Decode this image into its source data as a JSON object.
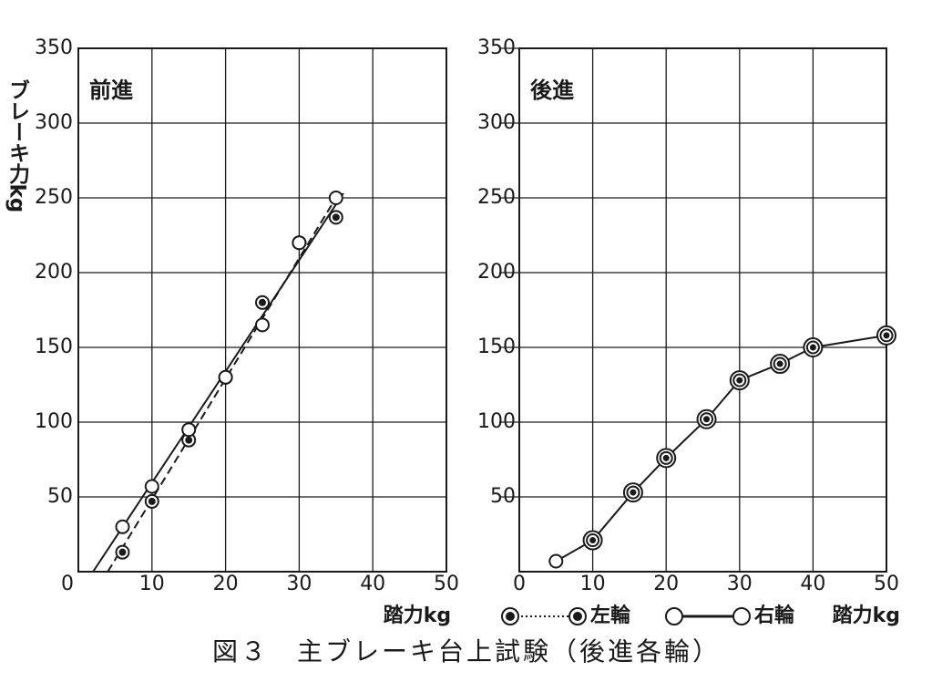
{
  "caption": "図３　主ブレーキ台上試験（後進各輪）",
  "chart_data": [
    {
      "type": "line",
      "panel_title": "前進",
      "ylabel": "ブレーキ力kg",
      "xlabel": "踏力kg",
      "xlim": [
        0,
        50
      ],
      "xticks": [
        0,
        10,
        20,
        30,
        40,
        50
      ],
      "ylim": [
        0,
        350
      ],
      "yticks": [
        50,
        100,
        150,
        200,
        250,
        300,
        350
      ],
      "grid": true,
      "series": [
        {
          "name": "左輪",
          "color": "#1a1a1a",
          "line": "dashed",
          "marker": "filled",
          "x": [
            6,
            10,
            15,
            20,
            25,
            30,
            35
          ],
          "values": [
            13,
            47,
            88,
            130,
            180,
            220,
            237
          ],
          "fit_x": [
            4,
            35
          ],
          "fit_y": [
            0,
            250
          ]
        },
        {
          "name": "右輪",
          "color": "#1a1a1a",
          "line": "solid",
          "marker": "open",
          "x": [
            6,
            10,
            15,
            20,
            25,
            30,
            35
          ],
          "values": [
            30,
            57,
            95,
            130,
            165,
            220,
            250
          ],
          "fit_x": [
            2,
            36
          ],
          "fit_y": [
            0,
            253
          ]
        }
      ]
    },
    {
      "type": "line",
      "panel_title": "後進",
      "xlabel": "踏力kg",
      "xlim": [
        0,
        50
      ],
      "xticks": [
        0,
        10,
        20,
        30,
        40,
        50
      ],
      "ylim": [
        0,
        350
      ],
      "yticks": [
        50,
        100,
        150,
        200,
        250,
        300,
        350
      ],
      "grid": true,
      "series": [
        {
          "color": "#1a1a1a",
          "line": "solid",
          "markers": [
            "open",
            "double",
            "double",
            "double",
            "double",
            "double",
            "double",
            "double",
            "double"
          ],
          "x": [
            5,
            10,
            15.5,
            20,
            25.5,
            30,
            35.5,
            40,
            50
          ],
          "values": [
            7,
            21,
            53,
            76,
            102,
            128,
            139,
            150,
            158
          ]
        }
      ]
    }
  ]
}
